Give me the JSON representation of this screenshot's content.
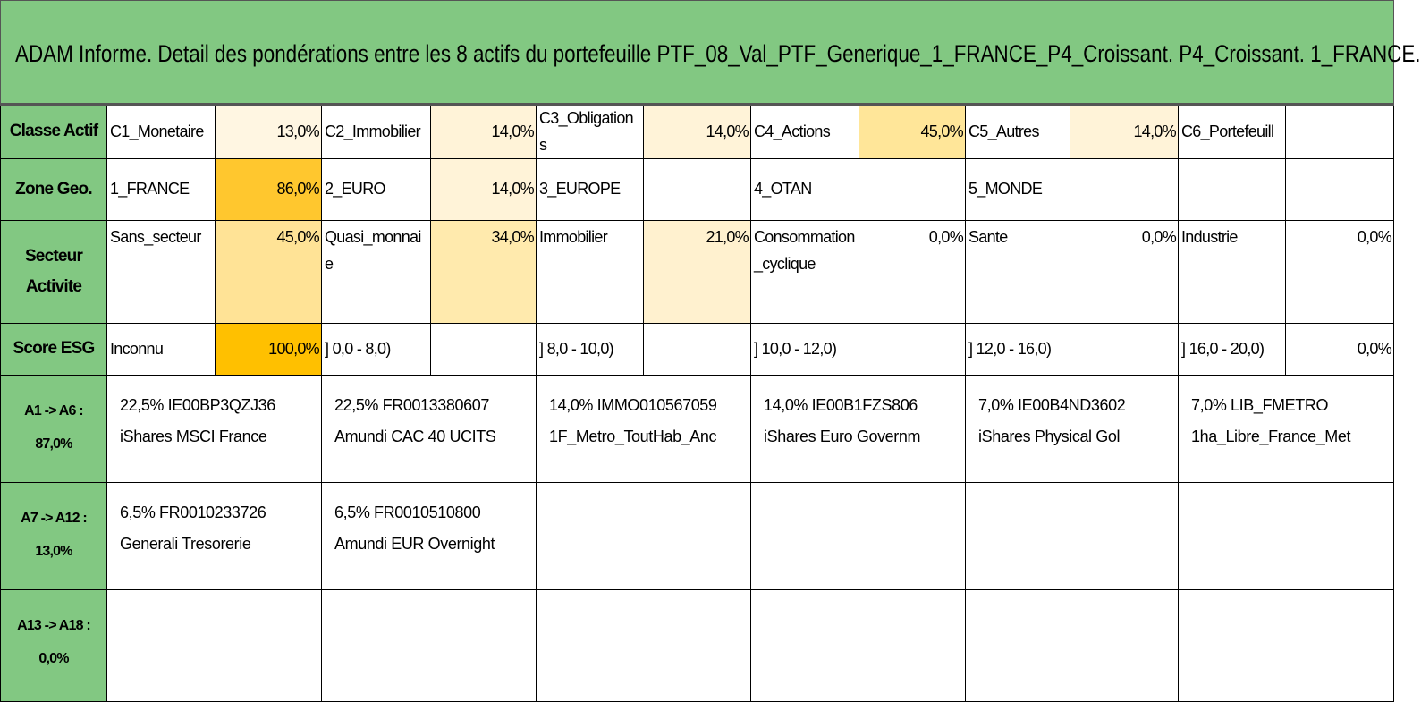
{
  "title": "ADAM Informe. Detail des pondérations entre les 8 actifs du portefeuille PTF_08_Val_PTF_Generique_1_FRANCE_P4_Croissant. P4_Croissant. 1_FRANCE.",
  "grid_rows": [
    {
      "label": "Classe Actif",
      "cells": [
        {
          "name": "C1_Monetaire",
          "weight": "13,0%"
        },
        {
          "name": "C2_Immobilier",
          "weight": "14,0%"
        },
        {
          "name": "C3_Obligations",
          "weight": "14,0%"
        },
        {
          "name": "C4_Actions",
          "weight": "45,0%"
        },
        {
          "name": "C5_Autres",
          "weight": "14,0%"
        },
        {
          "name": "C6_Portefeuill"
        }
      ]
    },
    {
      "label": "Zone Geo.",
      "cells": [
        {
          "name": "1_FRANCE",
          "weight": "86,0%"
        },
        {
          "name": "2_EURO",
          "weight": "14,0%"
        },
        {
          "name": "3_EUROPE"
        },
        {
          "name": "4_OTAN"
        },
        {
          "name": "5_MONDE"
        },
        {}
      ]
    },
    {
      "label": "Secteur Activite",
      "cells": [
        {
          "name": "Sans_secteur",
          "weight": "45,0%"
        },
        {
          "name": "Quasi_monnaie",
          "weight": "34,0%"
        },
        {
          "name": "Immobilier",
          "weight": "21,0%"
        },
        {
          "name": "Consommation_cyclique",
          "weight": "0,0%"
        },
        {
          "name": "Sante",
          "weight": "0,0%"
        },
        {
          "name": "Industrie",
          "weight": "0,0%"
        }
      ]
    },
    {
      "label": "Score ESG",
      "cells": [
        {
          "name": "Inconnu",
          "weight": "100,0%"
        },
        {
          "name": "] 0,0 - 8,0)"
        },
        {
          "name": "] 8,0 - 10,0)"
        },
        {
          "name": "] 10,0 - 12,0)"
        },
        {
          "name": "] 12,0 - 16,0)"
        },
        {
          "name": "] 16,0 - 20,0)",
          "weight": "0,0%"
        }
      ]
    }
  ],
  "asset_rows": [
    {
      "label": "A1 -> A6 :",
      "total": "87,0%",
      "assets": [
        [
          "22,5% IE00BP3QZJ36",
          "iShares MSCI France"
        ],
        [
          "22,5% FR0013380607",
          "Amundi CAC 40 UCITS"
        ],
        [
          "14,0% IMMO010567059",
          "1F_Metro_ToutHab_Anc"
        ],
        [
          "14,0% IE00B1FZS806",
          "iShares Euro Governm"
        ],
        [
          "7,0% IE00B4ND3602",
          "iShares Physical Gol"
        ],
        [
          "7,0% LIB_FMETRO",
          "1ha_Libre_France_Met"
        ]
      ]
    },
    {
      "label": "A7 -> A12 :",
      "total": "13,0%",
      "assets": [
        [
          "6,5% FR0010233726",
          "Generali Tresorerie"
        ],
        [
          "6,5% FR0010510800",
          "Amundi EUR Overnight"
        ]
      ]
    },
    {
      "label": "A13 -> A18 :",
      "total": "0,0%",
      "assets": []
    }
  ]
}
